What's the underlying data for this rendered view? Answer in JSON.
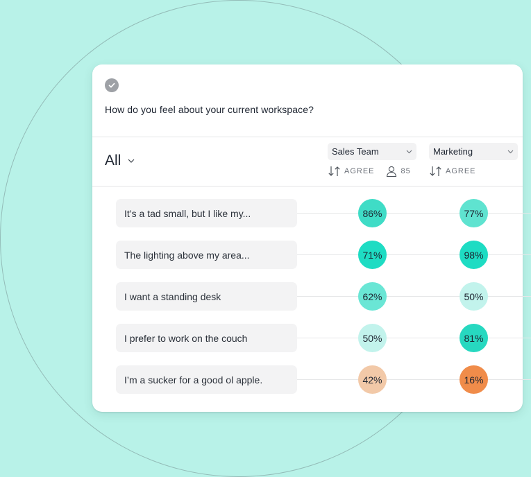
{
  "question": "How do you feel about your current workspace?",
  "filter": {
    "label": "All"
  },
  "columns": [
    {
      "team": "Sales Team",
      "sort_label": "AGREE",
      "respondents": "85"
    },
    {
      "team": "Marketing",
      "sort_label": "AGREE"
    }
  ],
  "rows": [
    {
      "label": "It’s a tad small, but I like my...",
      "values": [
        "86%",
        "77%"
      ],
      "colors": [
        "#3fdcc6",
        "#5fe3d0"
      ]
    },
    {
      "label": "The lighting above my area...",
      "values": [
        "71%",
        "98%"
      ],
      "colors": [
        "#1edcc3",
        "#1edcc3"
      ]
    },
    {
      "label": "I want a standing desk",
      "values": [
        "62%",
        "50%"
      ],
      "colors": [
        "#6ae6d5",
        "#c2f3ec"
      ]
    },
    {
      "label": "I prefer to work on the couch",
      "values": [
        "50%",
        "81%"
      ],
      "colors": [
        "#c2f3ec",
        "#27d8c0"
      ]
    },
    {
      "label": "I’m a sucker for a good ol apple.",
      "values": [
        "42%",
        "16%"
      ],
      "colors": [
        "#f2c9a8",
        "#f08c4a"
      ]
    }
  ]
}
